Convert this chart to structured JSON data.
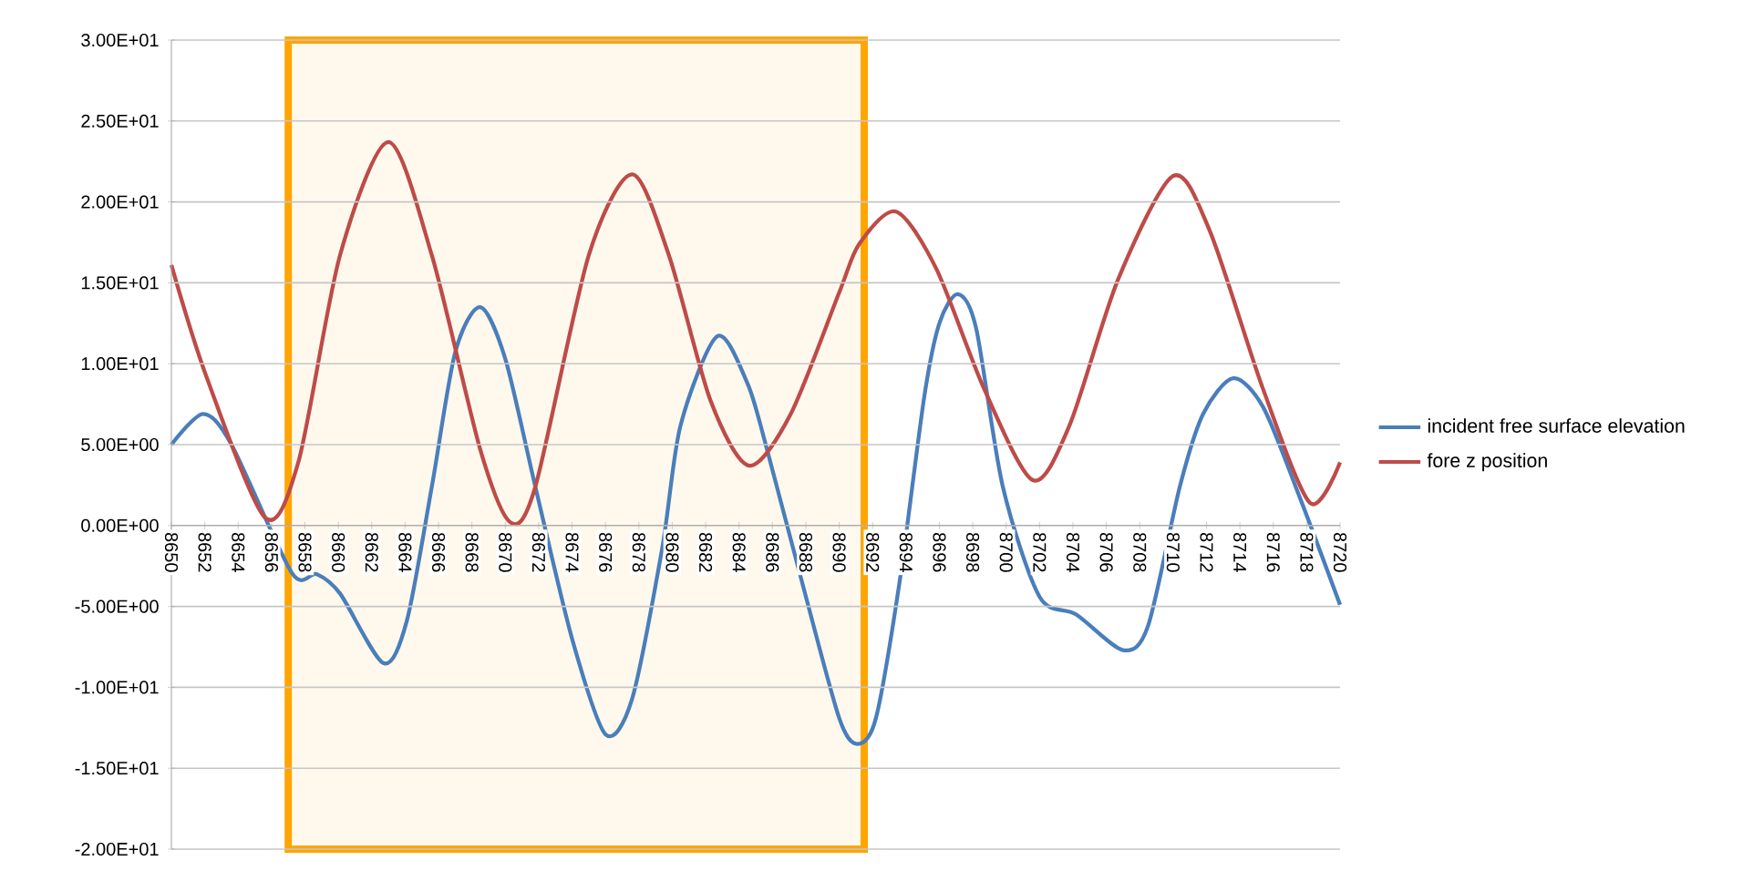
{
  "chart_data": {
    "type": "line",
    "ylim": [
      -20,
      30
    ],
    "yticks": [
      {
        "value": -20,
        "label": "-2.00E+01"
      },
      {
        "value": -15,
        "label": "-1.50E+01"
      },
      {
        "value": -10,
        "label": "-1.00E+01"
      },
      {
        "value": -5,
        "label": "-5.00E+00"
      },
      {
        "value": 0,
        "label": "0.00E+00"
      },
      {
        "value": 5,
        "label": "5.00E+00"
      },
      {
        "value": 10,
        "label": "1.00E+01"
      },
      {
        "value": 15,
        "label": "1.50E+01"
      },
      {
        "value": 20,
        "label": "2.00E+01"
      },
      {
        "value": 25,
        "label": "2.50E+01"
      },
      {
        "value": 30,
        "label": "3.00E+01"
      }
    ],
    "xlim": [
      8650,
      8720
    ],
    "xticks": [
      8650,
      8652,
      8654,
      8656,
      8658,
      8660,
      8662,
      8664,
      8666,
      8668,
      8670,
      8672,
      8674,
      8676,
      8678,
      8680,
      8682,
      8684,
      8686,
      8688,
      8690,
      8692,
      8694,
      8696,
      8698,
      8700,
      8702,
      8704,
      8706,
      8708,
      8710,
      8712,
      8714,
      8716,
      8718,
      8720
    ],
    "grid": "y",
    "legend": "right",
    "marker": "none",
    "line_style": "solid",
    "bands": [
      {
        "axis": "x",
        "from": 8657,
        "to": 8691.5,
        "color": "#ffa500"
      }
    ],
    "series": [
      {
        "name": "incident free surface elevation",
        "color": "#4a7ebb",
        "x": [
          8650,
          8651.9,
          8653.6,
          8657.2,
          8658.7,
          8660.1,
          8662.7,
          8664.1,
          8665.6,
          8667.0,
          8668.5,
          8670.0,
          8671.8,
          8674.0,
          8676.0,
          8677.6,
          8679.4,
          8680.5,
          8682.7,
          8684.5,
          8685.6,
          8687.8,
          8690.0,
          8691.1,
          8692.2,
          8693.6,
          8695.1,
          8696.0,
          8697.1,
          8698.2,
          8699.8,
          8702.0,
          8704.2,
          8707.0,
          8708.5,
          8710.4,
          8711.8,
          8713.6,
          8715.4,
          8717.6,
          8720
        ],
        "values": [
          5.0,
          6.9,
          5.0,
          -2.9,
          -3.0,
          -4.2,
          -8.5,
          -5.9,
          2.4,
          10.7,
          13.5,
          10.3,
          2.4,
          -7.0,
          -12.9,
          -10.7,
          -1.4,
          6.2,
          11.7,
          8.8,
          5.0,
          -3.6,
          -11.9,
          -13.5,
          -11.9,
          -3.6,
          8.0,
          12.5,
          14.3,
          12.2,
          2.4,
          -4.4,
          -5.5,
          -7.7,
          -6.2,
          2.4,
          6.9,
          9.1,
          7.3,
          1.7,
          -4.9
        ]
      },
      {
        "name": "fore z position",
        "color": "#be4b48",
        "x": [
          8650,
          8652.1,
          8655.6,
          8657.6,
          8660.1,
          8663.0,
          8665.6,
          8668.5,
          8670.3,
          8671.8,
          8675.0,
          8677.6,
          8679.8,
          8682.3,
          8684.6,
          8687.1,
          8690.0,
          8691.2,
          8693.4,
          8695.8,
          8698.7,
          8701.6,
          8703.8,
          8706.7,
          8710.0,
          8712.2,
          8715.4,
          8718.2,
          8720
        ],
        "values": [
          16.1,
          9.2,
          0.5,
          3.9,
          16.7,
          23.7,
          16.7,
          4.7,
          0.2,
          2.4,
          16.7,
          21.7,
          16.7,
          7.7,
          3.7,
          6.9,
          14.4,
          17.4,
          19.4,
          15.9,
          8.4,
          2.8,
          6.2,
          15.2,
          21.6,
          18.2,
          8.4,
          1.4,
          3.9
        ]
      }
    ]
  }
}
